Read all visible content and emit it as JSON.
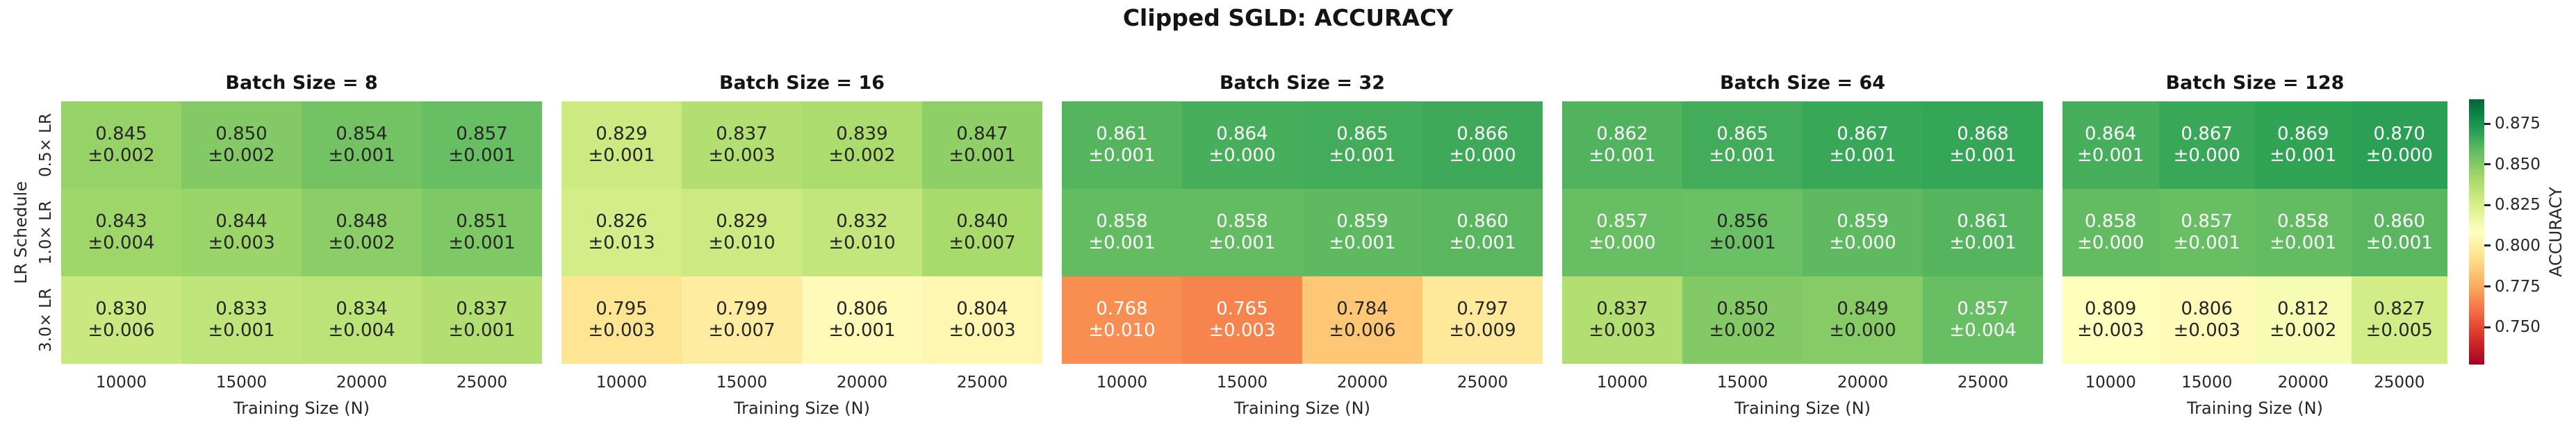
{
  "figure": {
    "title": "Clipped SGLD: ACCURACY"
  },
  "chart_data": {
    "type": "heatmap",
    "title": "Clipped SGLD: ACCURACY",
    "xlabel": "Training Size (N)",
    "ylabel": "LR Schedule",
    "x_categories": [
      "10000",
      "15000",
      "20000",
      "25000"
    ],
    "y_categories": [
      "0.5× LR",
      "1.0× LR",
      "3.0× LR"
    ],
    "colormap": "RdYlGn",
    "vmin": 0.727,
    "vmax": 0.89,
    "colorbar": {
      "label": "ACCURACY",
      "ticks": [
        "0.875",
        "0.850",
        "0.825",
        "0.800",
        "0.775",
        "0.750"
      ],
      "position": "right"
    },
    "colors": {
      "annot_dark": "#262626",
      "annot_white": "#ffffff",
      "cmap_anchors": [
        "#a50026",
        "#d73027",
        "#f46d43",
        "#fdae61",
        "#fee08b",
        "#ffffbf",
        "#d9ef8b",
        "#a6d96a",
        "#66bd63",
        "#1a9850",
        "#006837"
      ]
    },
    "panels": [
      {
        "title": "Batch Size = 8",
        "values": [
          [
            "0.845",
            "0.850",
            "0.854",
            "0.857"
          ],
          [
            "0.843",
            "0.844",
            "0.848",
            "0.851"
          ],
          [
            "0.830",
            "0.833",
            "0.834",
            "0.837"
          ]
        ],
        "errors": [
          [
            "±0.002",
            "±0.002",
            "±0.001",
            "±0.001"
          ],
          [
            "±0.004",
            "±0.003",
            "±0.002",
            "±0.001"
          ],
          [
            "±0.006",
            "±0.001",
            "±0.004",
            "±0.001"
          ]
        ],
        "text_colors": [
          [
            "d",
            "d",
            "d",
            "d"
          ],
          [
            "d",
            "d",
            "d",
            "d"
          ],
          [
            "d",
            "d",
            "d",
            "d"
          ]
        ]
      },
      {
        "title": "Batch Size = 16",
        "values": [
          [
            "0.829",
            "0.837",
            "0.839",
            "0.847"
          ],
          [
            "0.826",
            "0.829",
            "0.832",
            "0.840"
          ],
          [
            "0.795",
            "0.799",
            "0.806",
            "0.804"
          ]
        ],
        "errors": [
          [
            "±0.001",
            "±0.003",
            "±0.002",
            "±0.001"
          ],
          [
            "±0.013",
            "±0.010",
            "±0.010",
            "±0.007"
          ],
          [
            "±0.003",
            "±0.007",
            "±0.001",
            "±0.003"
          ]
        ],
        "text_colors": [
          [
            "d",
            "d",
            "d",
            "d"
          ],
          [
            "d",
            "d",
            "d",
            "d"
          ],
          [
            "d",
            "d",
            "d",
            "d"
          ]
        ]
      },
      {
        "title": "Batch Size = 32",
        "values": [
          [
            "0.861",
            "0.864",
            "0.865",
            "0.866"
          ],
          [
            "0.858",
            "0.858",
            "0.859",
            "0.860"
          ],
          [
            "0.768",
            "0.765",
            "0.784",
            "0.797"
          ]
        ],
        "errors": [
          [
            "±0.001",
            "±0.000",
            "±0.001",
            "±0.000"
          ],
          [
            "±0.001",
            "±0.001",
            "±0.001",
            "±0.001"
          ],
          [
            "±0.010",
            "±0.003",
            "±0.006",
            "±0.009"
          ]
        ],
        "text_colors": [
          [
            "w",
            "w",
            "w",
            "w"
          ],
          [
            "w",
            "w",
            "w",
            "w"
          ],
          [
            "w",
            "w",
            "d",
            "d"
          ]
        ]
      },
      {
        "title": "Batch Size = 64",
        "values": [
          [
            "0.862",
            "0.865",
            "0.867",
            "0.868"
          ],
          [
            "0.857",
            "0.856",
            "0.859",
            "0.861"
          ],
          [
            "0.837",
            "0.850",
            "0.849",
            "0.857"
          ]
        ],
        "errors": [
          [
            "±0.001",
            "±0.001",
            "±0.001",
            "±0.001"
          ],
          [
            "±0.000",
            "±0.001",
            "±0.000",
            "±0.001"
          ],
          [
            "±0.003",
            "±0.002",
            "±0.000",
            "±0.004"
          ]
        ],
        "text_colors": [
          [
            "w",
            "w",
            "w",
            "w"
          ],
          [
            "w",
            "d",
            "w",
            "w"
          ],
          [
            "d",
            "d",
            "d",
            "w"
          ]
        ]
      },
      {
        "title": "Batch Size = 128",
        "values": [
          [
            "0.864",
            "0.867",
            "0.869",
            "0.870"
          ],
          [
            "0.858",
            "0.857",
            "0.858",
            "0.860"
          ],
          [
            "0.809",
            "0.806",
            "0.812",
            "0.827"
          ]
        ],
        "errors": [
          [
            "±0.001",
            "±0.000",
            "±0.001",
            "±0.000"
          ],
          [
            "±0.000",
            "±0.001",
            "±0.001",
            "±0.001"
          ],
          [
            "±0.003",
            "±0.003",
            "±0.002",
            "±0.005"
          ]
        ],
        "text_colors": [
          [
            "w",
            "w",
            "w",
            "w"
          ],
          [
            "w",
            "w",
            "w",
            "w"
          ],
          [
            "d",
            "d",
            "d",
            "d"
          ]
        ]
      }
    ]
  }
}
